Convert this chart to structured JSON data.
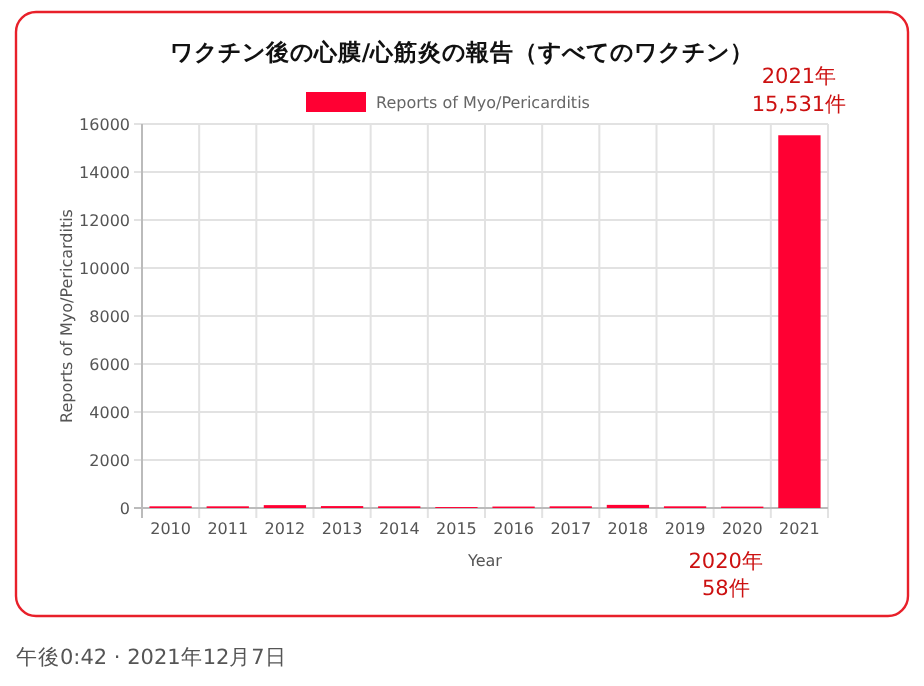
{
  "chart_data": {
    "type": "bar",
    "title": "ワクチン後の心膜/心筋炎の報告（すべてのワクチン）",
    "xlabel": "Year",
    "ylabel": "Reports of Myo/Pericarditis",
    "categories": [
      "2010",
      "2011",
      "2012",
      "2013",
      "2014",
      "2015",
      "2016",
      "2017",
      "2018",
      "2019",
      "2020",
      "2021"
    ],
    "series": [
      {
        "name": "Reports of Myo/Pericarditis",
        "color": "#ff0033",
        "values": [
          70,
          70,
          120,
          80,
          70,
          40,
          60,
          70,
          130,
          70,
          58,
          15531
        ]
      }
    ],
    "ylim": [
      0,
      16000
    ],
    "yticks": [
      0,
      2000,
      4000,
      6000,
      8000,
      10000,
      12000,
      14000,
      16000
    ],
    "grid": true,
    "legend": "top",
    "annotations": [
      {
        "text": "2021年\n15,531件",
        "x": "2021",
        "y": 15531
      },
      {
        "text": "2020年\n58件",
        "x": "2020",
        "y": 58
      },
      "午後0:42 · 2021年12月7日"
    ]
  }
}
